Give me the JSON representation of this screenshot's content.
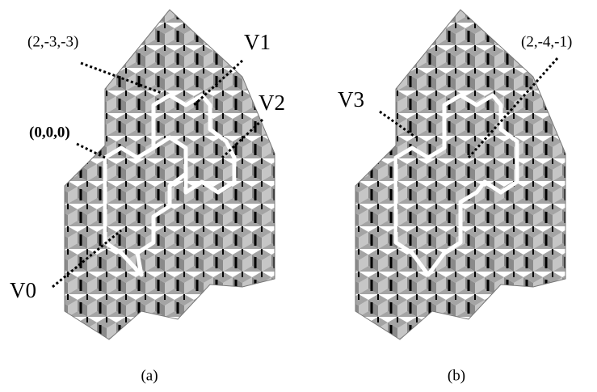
{
  "panels": [
    {
      "caption": "(a)",
      "labels": [
        "(2,-3,-3)",
        "V1",
        "V2",
        "(0,0,0)",
        "V0"
      ]
    },
    {
      "caption": "(b)",
      "labels": [
        "V3",
        "(2,-4,-1)"
      ]
    }
  ]
}
